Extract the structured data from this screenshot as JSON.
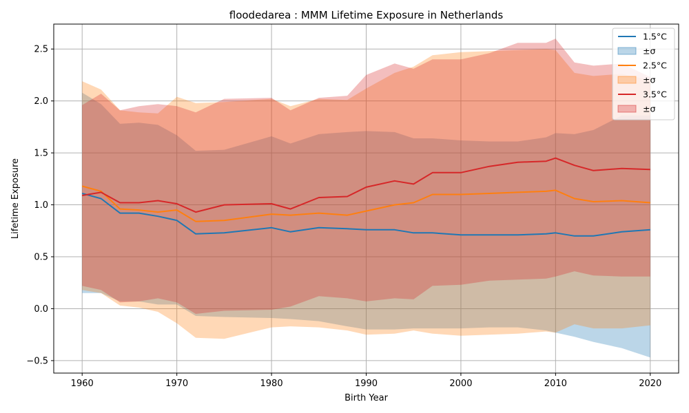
{
  "chart_data": {
    "type": "area",
    "title": "floodedarea : MMM Lifetime Exposure in Netherlands",
    "xlabel": "Birth Year",
    "ylabel": "Lifetime Exposure",
    "xlim": [
      1957,
      2023
    ],
    "ylim": [
      -0.62,
      2.74
    ],
    "xticks": [
      1960,
      1970,
      1980,
      1990,
      2000,
      2010,
      2020
    ],
    "yticks": [
      -0.5,
      0.0,
      0.5,
      1.0,
      1.5,
      2.0,
      2.5
    ],
    "ytick_labels": [
      "−0.5",
      "0.0",
      "0.5",
      "1.0",
      "1.5",
      "2.0",
      "2.5"
    ],
    "grid": true,
    "legend_position": "top-right",
    "x": [
      1960,
      1962,
      1964,
      1966,
      1968,
      1970,
      1972,
      1975,
      1980,
      1982,
      1985,
      1988,
      1990,
      1993,
      1995,
      1997,
      2000,
      2003,
      2006,
      2009,
      2010,
      2012,
      2014,
      2017,
      2020
    ],
    "series": [
      {
        "name": "1.5°C",
        "band_label": "±σ",
        "color": "#1f77b4",
        "band_color": "#1f77b4",
        "values": [
          1.11,
          1.06,
          0.92,
          0.92,
          0.89,
          0.85,
          0.72,
          0.73,
          0.78,
          0.74,
          0.78,
          0.77,
          0.76,
          0.76,
          0.73,
          0.73,
          0.71,
          0.71,
          0.71,
          0.72,
          0.73,
          0.7,
          0.7,
          0.74,
          0.76
        ],
        "upper": [
          2.08,
          1.97,
          1.78,
          1.79,
          1.77,
          1.67,
          1.52,
          1.53,
          1.66,
          1.59,
          1.68,
          1.7,
          1.71,
          1.7,
          1.64,
          1.64,
          1.62,
          1.61,
          1.61,
          1.65,
          1.69,
          1.68,
          1.72,
          1.86,
          1.86
        ],
        "lower": [
          0.15,
          0.15,
          0.07,
          0.07,
          0.04,
          0.04,
          -0.07,
          -0.08,
          -0.09,
          -0.1,
          -0.12,
          -0.17,
          -0.2,
          -0.2,
          -0.19,
          -0.19,
          -0.19,
          -0.18,
          -0.18,
          -0.21,
          -0.23,
          -0.27,
          -0.32,
          -0.38,
          -0.47
        ]
      },
      {
        "name": "2.5°C",
        "band_label": "±σ",
        "color": "#ff7f0e",
        "band_color": "#ff7f0e",
        "values": [
          1.18,
          1.13,
          0.96,
          0.95,
          0.93,
          0.95,
          0.84,
          0.85,
          0.91,
          0.9,
          0.92,
          0.9,
          0.94,
          1.0,
          1.02,
          1.1,
          1.1,
          1.11,
          1.12,
          1.13,
          1.14,
          1.06,
          1.03,
          1.04,
          1.02
        ],
        "upper": [
          2.19,
          2.11,
          1.91,
          1.89,
          1.88,
          2.04,
          1.98,
          1.99,
          2.02,
          1.95,
          2.02,
          2.01,
          2.12,
          2.27,
          2.33,
          2.44,
          2.47,
          2.48,
          2.49,
          2.5,
          2.49,
          2.27,
          2.24,
          2.26,
          2.2
        ],
        "lower": [
          0.18,
          0.15,
          0.03,
          0.01,
          -0.03,
          -0.14,
          -0.28,
          -0.29,
          -0.18,
          -0.17,
          -0.18,
          -0.21,
          -0.25,
          -0.24,
          -0.21,
          -0.24,
          -0.26,
          -0.25,
          -0.24,
          -0.22,
          -0.23,
          -0.15,
          -0.19,
          -0.19,
          -0.16
        ]
      },
      {
        "name": "3.5°C",
        "band_label": "±σ",
        "color": "#d62728",
        "band_color": "#d62728",
        "values": [
          1.09,
          1.12,
          1.02,
          1.02,
          1.04,
          1.01,
          0.93,
          1.0,
          1.01,
          0.96,
          1.07,
          1.08,
          1.17,
          1.23,
          1.2,
          1.31,
          1.31,
          1.37,
          1.41,
          1.42,
          1.45,
          1.38,
          1.33,
          1.35,
          1.34
        ],
        "upper": [
          1.96,
          2.07,
          1.91,
          1.95,
          1.97,
          1.95,
          1.89,
          2.02,
          2.03,
          1.91,
          2.03,
          2.05,
          2.25,
          2.36,
          2.31,
          2.4,
          2.4,
          2.46,
          2.56,
          2.56,
          2.6,
          2.37,
          2.34,
          2.36,
          2.23
        ],
        "lower": [
          0.22,
          0.18,
          0.06,
          0.07,
          0.1,
          0.06,
          -0.05,
          -0.02,
          -0.01,
          0.02,
          0.12,
          0.1,
          0.07,
          0.1,
          0.09,
          0.22,
          0.23,
          0.27,
          0.28,
          0.29,
          0.31,
          0.36,
          0.32,
          0.31,
          0.31
        ]
      }
    ]
  }
}
